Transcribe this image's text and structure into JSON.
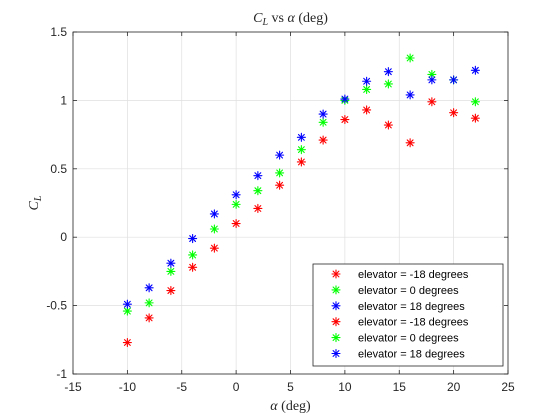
{
  "chart_data": {
    "type": "scatter",
    "title": "C_L vs α (deg)",
    "title_parts": [
      "C",
      "L",
      " vs ",
      "α",
      " (deg)"
    ],
    "xlabel": "α (deg)",
    "xlabel_parts": [
      "α",
      " (deg)"
    ],
    "ylabel": "C_L",
    "ylabel_parts": [
      "C",
      "L"
    ],
    "xlim": [
      -15,
      25
    ],
    "ylim": [
      -1,
      1.5
    ],
    "xticks": [
      -15,
      -10,
      -5,
      0,
      5,
      10,
      15,
      20,
      25
    ],
    "yticks": [
      -1,
      -0.5,
      0,
      0.5,
      1,
      1.5
    ],
    "xtick_labels": [
      "-15",
      "-10",
      "-5",
      "0",
      "5",
      "10",
      "15",
      "20",
      "25"
    ],
    "ytick_labels": [
      "-1",
      "-0.5",
      "0",
      "0.5",
      "1",
      "1.5"
    ],
    "grid": true,
    "legend_position": "bottom-right",
    "marker": "asterisk",
    "series": [
      {
        "name": "elevator = -18 degrees",
        "color": "#ff0000",
        "x": [
          -10,
          -8,
          -6,
          -4,
          -2,
          0,
          2,
          4,
          6,
          8,
          10,
          12,
          14
        ],
        "y": [
          -0.77,
          -0.59,
          -0.39,
          -0.22,
          -0.08,
          0.1,
          0.21,
          0.38,
          0.55,
          0.71,
          0.86,
          0.93,
          0.82
        ]
      },
      {
        "name": "elevator = 0 degrees",
        "color": "#00ff00",
        "x": [
          -10,
          -8,
          -6,
          -4,
          -2,
          0,
          2,
          4,
          6,
          8,
          10,
          12,
          14
        ],
        "y": [
          -0.54,
          -0.48,
          -0.25,
          -0.13,
          0.06,
          0.24,
          0.34,
          0.47,
          0.64,
          0.84,
          1.0,
          1.08,
          1.12
        ]
      },
      {
        "name": "elevator = 18 degrees",
        "color": "#0000ff",
        "x": [
          -10,
          -8,
          -6,
          -4,
          -2,
          0,
          2,
          4,
          6,
          8,
          10,
          12,
          14
        ],
        "y": [
          -0.49,
          -0.37,
          -0.19,
          -0.01,
          0.17,
          0.31,
          0.45,
          0.6,
          0.73,
          0.9,
          1.01,
          1.14,
          1.21
        ]
      },
      {
        "name": "elevator = -18 degrees",
        "color": "#ff0000",
        "x": [
          16,
          18,
          20,
          22
        ],
        "y": [
          0.69,
          0.99,
          0.91,
          0.87
        ]
      },
      {
        "name": "elevator = 0 degrees",
        "color": "#00ff00",
        "x": [
          16,
          18,
          20,
          22
        ],
        "y": [
          1.31,
          1.19,
          1.15,
          0.99
        ]
      },
      {
        "name": "elevator = 18 degrees",
        "color": "#0000ff",
        "x": [
          16,
          18,
          20,
          22
        ],
        "y": [
          1.04,
          1.15,
          1.15,
          1.22
        ]
      }
    ]
  }
}
